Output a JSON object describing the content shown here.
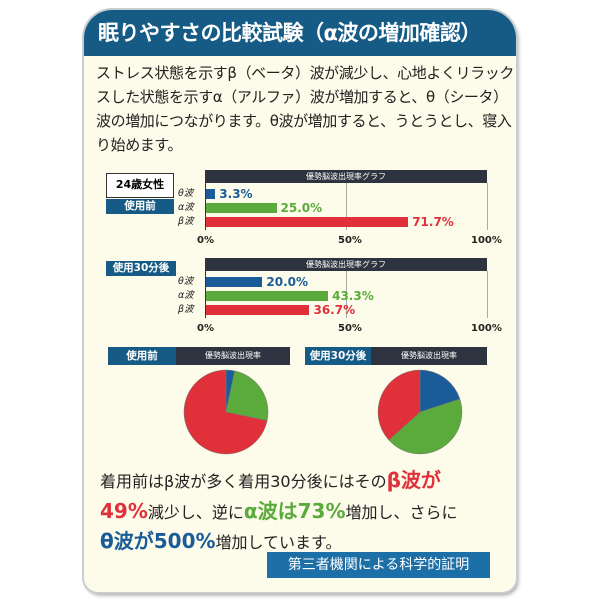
{
  "title": "眠りやすさの比較試験（α波の増加確認）",
  "intro": "ストレス状態を示すβ（ベータ）波が減少し、心地よくリラックスした状態を示すα（アルファ）波が増加すると、θ（シータ）波の増加につながります。θ波が増加すると、うとうとし、寝入り始めます。",
  "subject": "24歳女性",
  "colors": {
    "theta": "#1a5c99",
    "alpha": "#5aab3c",
    "beta": "#e0303a",
    "header": "#155b86"
  },
  "chart_data": [
    {
      "type": "bar",
      "title": "優勢脳波出現率グラフ",
      "group": "使用前",
      "categories": [
        "θ波",
        "α波",
        "β波"
      ],
      "values": [
        3.3,
        25.0,
        71.7
      ],
      "labels": [
        "3.3%",
        "25.0%",
        "71.7%"
      ],
      "ticks": [
        "0%",
        "50%",
        "100%"
      ],
      "xlim": [
        0,
        100
      ]
    },
    {
      "type": "bar",
      "title": "優勢脳波出現率グラフ",
      "group": "使用30分後",
      "categories": [
        "θ波",
        "α波",
        "β波"
      ],
      "values": [
        20.0,
        43.3,
        36.7
      ],
      "labels": [
        "20.0%",
        "43.3%",
        "36.7%"
      ],
      "ticks": [
        "0%",
        "50%",
        "100%"
      ],
      "xlim": [
        0,
        100
      ]
    },
    {
      "type": "pie",
      "title": "優勢脳波出現率",
      "group": "使用前",
      "categories": [
        "θ波",
        "α波",
        "β波"
      ],
      "values": [
        3.3,
        25.0,
        71.7
      ]
    },
    {
      "type": "pie",
      "title": "優勢脳波出現率",
      "group": "使用30分後",
      "categories": [
        "θ波",
        "α波",
        "β波"
      ],
      "values": [
        20.0,
        43.3,
        36.7
      ]
    }
  ],
  "conclusion": {
    "p1": "着用前はβ波が多く着用30分後にはその",
    "b1": "β波が",
    "b2": "49%",
    "p2": "減少し、逆に",
    "b3": "α波は73%",
    "p3": "増加し、さらに",
    "b4": "θ波が500%",
    "p4": "増加しています。"
  },
  "proof": "第三者機関による科学的証明"
}
